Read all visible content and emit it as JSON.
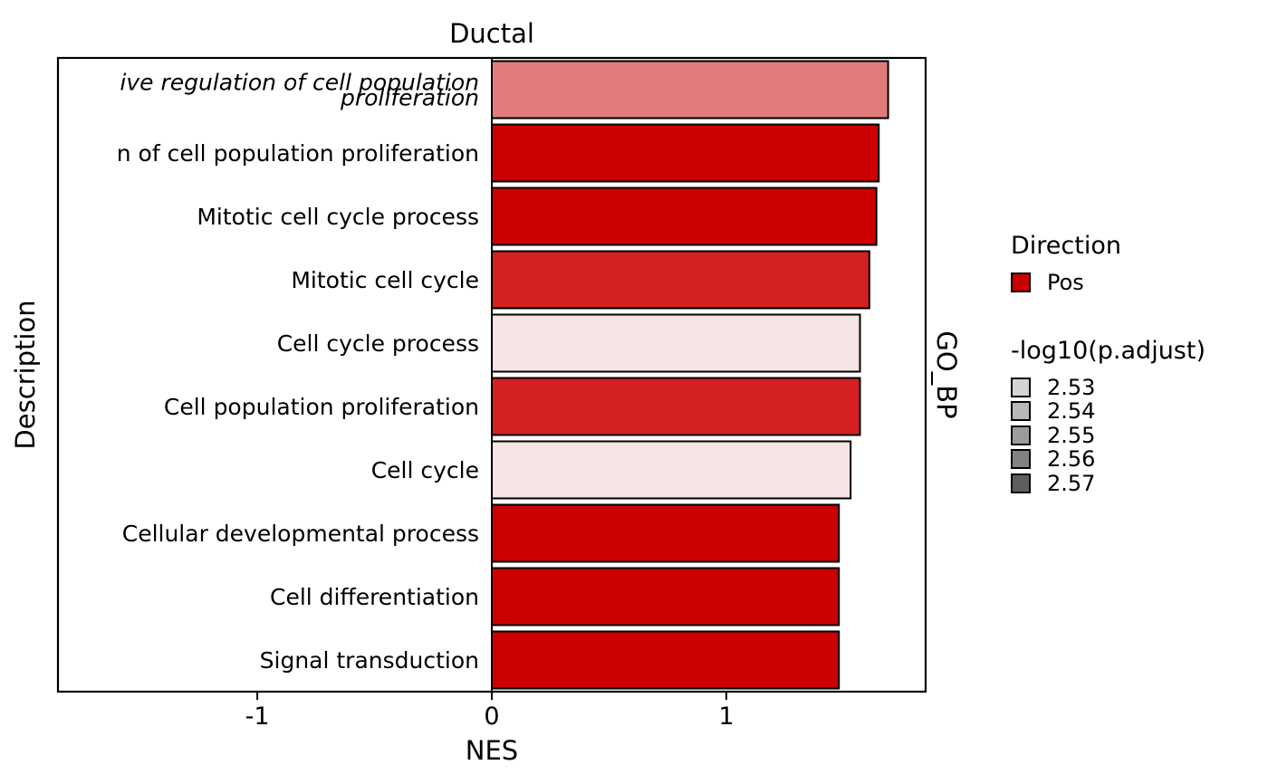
{
  "chart_data": {
    "type": "bar",
    "orientation": "horizontal",
    "title": "Ductal",
    "facet_label": "GO_BP",
    "xlabel": "NES",
    "ylabel": "Description",
    "xlim": [
      -1.85,
      1.85
    ],
    "x_ticks": [
      -1,
      0,
      1
    ],
    "x_tick_labels": [
      "-1",
      "0",
      "1"
    ],
    "grid": false,
    "categories": [
      "Positive regulation of cell population proliferation",
      "Regulation of cell population proliferation",
      "Mitotic cell cycle process",
      "Mitotic cell cycle",
      "Cell cycle process",
      "Cell population proliferation",
      "Cell cycle",
      "Cellular developmental process",
      "Cell differentiation",
      "Signal transduction"
    ],
    "category_display_lines": [
      [
        "ive regulation of cell population",
        "proliferation"
      ],
      [
        "n of cell population proliferation"
      ],
      [
        "Mitotic cell cycle process"
      ],
      [
        "Mitotic cell cycle"
      ],
      [
        "Cell cycle process"
      ],
      [
        "Cell population proliferation"
      ],
      [
        "Cell cycle"
      ],
      [
        "Cellular developmental process"
      ],
      [
        "Cell differentiation"
      ],
      [
        "Signal transduction"
      ]
    ],
    "category_italic": [
      true,
      false,
      false,
      false,
      false,
      false,
      false,
      false,
      false,
      false
    ],
    "values": [
      1.69,
      1.65,
      1.64,
      1.61,
      1.57,
      1.57,
      1.53,
      1.48,
      1.48,
      1.48
    ],
    "neg_log10_padj": [
      2.545,
      2.57,
      2.57,
      2.56,
      2.53,
      2.56,
      2.53,
      2.57,
      2.57,
      2.57
    ],
    "bar_colors": [
      "#e37b7b",
      "#cc0000",
      "#cc0000",
      "#d42020",
      "#f7e4e4",
      "#d42020",
      "#f7e4e4",
      "#cc0000",
      "#cc0000",
      "#cc0000"
    ],
    "legend": {
      "position": "right",
      "direction_title": "Direction",
      "direction_items": [
        {
          "label": "Pos",
          "color": "#cc0000"
        }
      ],
      "padj_title": "-log10(p.adjust)",
      "padj_items": [
        {
          "label": "2.53",
          "color": "#d4d4d4"
        },
        {
          "label": "2.54",
          "color": "#b8b8b8"
        },
        {
          "label": "2.55",
          "color": "#9c9c9c"
        },
        {
          "label": "2.56",
          "color": "#828282"
        },
        {
          "label": "2.57",
          "color": "#5e5e5e"
        }
      ]
    }
  }
}
